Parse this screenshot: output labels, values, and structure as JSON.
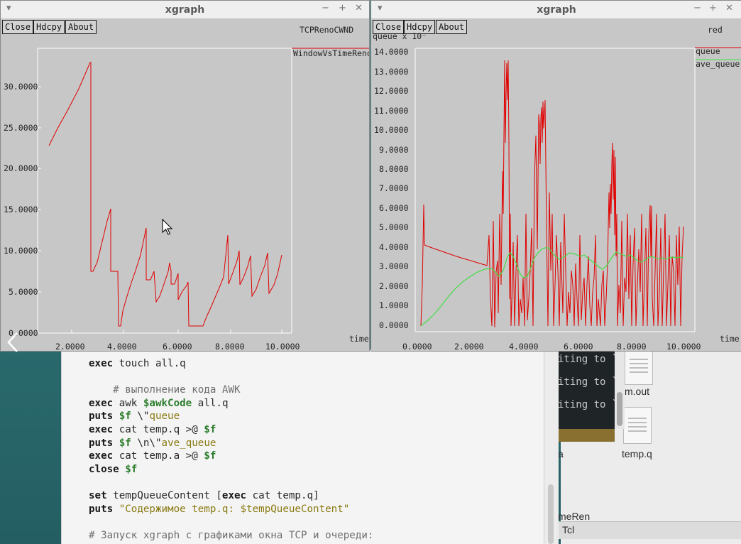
{
  "window_left": {
    "title": "xgraph",
    "buttons": [
      "Close",
      "Hdcpy",
      "About"
    ],
    "graph_title": "TCPRenoCWND",
    "legend": "WindowVsTimeReno",
    "x_label": "time",
    "y_ticks": [
      "30.0000",
      "25.0000",
      "20.0000",
      "15.0000",
      "10.0000",
      "5.0000",
      "0.0000"
    ],
    "x_ticks": [
      "2.0000",
      "4.0000",
      "6.0000",
      "8.0000",
      "10.0000"
    ],
    "series_color": "#e00000"
  },
  "window_right": {
    "title": "xgraph",
    "buttons": [
      "Close",
      "Hdcpy",
      "About"
    ],
    "graph_title": "red",
    "y_axis_label": "queue x 10⁻",
    "legend": [
      "queue",
      "ave_queue"
    ],
    "x_label": "time",
    "y_ticks": [
      "14.0000",
      "13.0000",
      "12.0000",
      "11.0000",
      "10.0000",
      "9.0000",
      "8.0000",
      "7.0000",
      "6.0000",
      "5.0000",
      "4.0000",
      "3.0000",
      "2.0000",
      "1.0000",
      "0.0000"
    ],
    "x_ticks": [
      "0.0000",
      "2.0000",
      "4.0000",
      "6.0000",
      "8.0000",
      "10.0000"
    ],
    "series_colors": {
      "queue": "#e00000",
      "ave_queue": "#44dd44"
    }
  },
  "editor": {
    "lines": [
      {
        "parts": [
          [
            "kw",
            "exec"
          ],
          [
            "",
            " touch all.q"
          ]
        ]
      },
      {
        "parts": [
          [
            "",
            ""
          ]
        ]
      },
      {
        "parts": [
          [
            "cmt",
            "    # выполнение кода AWK"
          ]
        ]
      },
      {
        "parts": [
          [
            "kw",
            "exec"
          ],
          [
            "",
            " awk "
          ],
          [
            "var",
            "$awkCode"
          ],
          [
            "",
            " all.q"
          ]
        ]
      },
      {
        "parts": [
          [
            "kw",
            "puts"
          ],
          [
            "",
            " "
          ],
          [
            "var",
            "$f"
          ],
          [
            "",
            " \\\""
          ],
          [
            "str",
            "queue"
          ]
        ]
      },
      {
        "parts": [
          [
            "kw",
            "exec"
          ],
          [
            "",
            " cat temp.q >@ "
          ],
          [
            "var",
            "$f"
          ]
        ]
      },
      {
        "parts": [
          [
            "kw",
            "puts"
          ],
          [
            "",
            " "
          ],
          [
            "var",
            "$f"
          ],
          [
            "",
            " \\n\\\""
          ],
          [
            "str",
            "ave_queue"
          ]
        ]
      },
      {
        "parts": [
          [
            "kw",
            "exec"
          ],
          [
            "",
            " cat temp.a >@ "
          ],
          [
            "var",
            "$f"
          ]
        ]
      },
      {
        "parts": [
          [
            "kw",
            "close"
          ],
          [
            "",
            " "
          ],
          [
            "var",
            "$f"
          ]
        ]
      },
      {
        "parts": [
          [
            "",
            ""
          ]
        ]
      },
      {
        "parts": [
          [
            "kw",
            "set"
          ],
          [
            "",
            " tempQueueContent ["
          ],
          [
            "kw",
            "exec"
          ],
          [
            "",
            " cat temp.q]"
          ]
        ]
      },
      {
        "parts": [
          [
            "kw",
            "puts"
          ],
          [
            "",
            " "
          ],
          [
            "str",
            "\"Содержимое temp.q: $tempQueueContent\""
          ]
        ]
      },
      {
        "parts": [
          [
            "",
            ""
          ]
        ]
      },
      {
        "parts": [
          [
            "cmt",
            "# Запуск xgraph с графиками окна TCP и очереди:"
          ]
        ]
      }
    ]
  },
  "terminal": {
    "lines": [
      "iting to `f",
      "iting to `f",
      "iting to `f"
    ]
  },
  "desktop": {
    "files": [
      "m.out",
      "temp.q"
    ],
    "partial_labels": [
      "a",
      "meRen"
    ],
    "taskbar_item": "Tcl"
  }
}
